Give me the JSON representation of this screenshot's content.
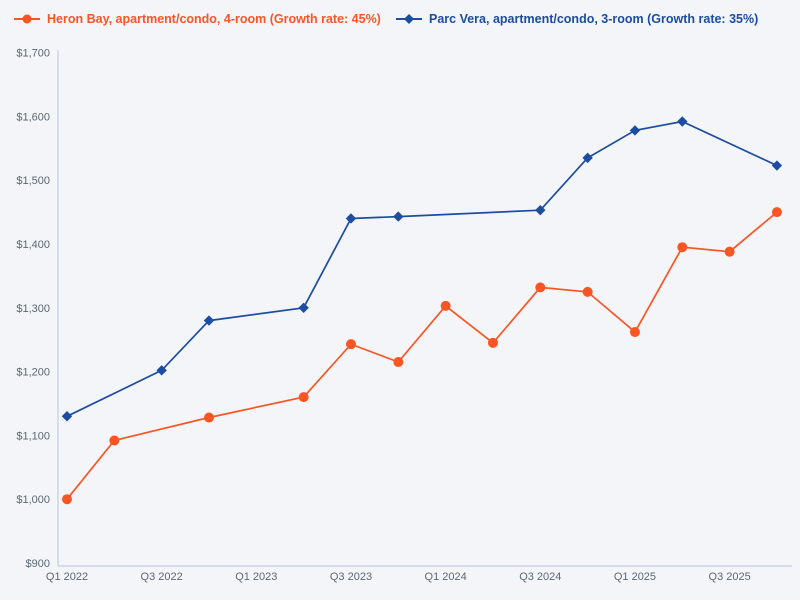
{
  "legend": {
    "items": [
      {
        "label": "Heron Bay, apartment/condo, 4-room (Growth rate: 45%)",
        "marker": "circle",
        "color": "#fb5524"
      },
      {
        "label": "Parc Vera, apartment/condo, 3-room (Growth rate: 35%)",
        "marker": "diamond",
        "color": "#1c4da0"
      }
    ]
  },
  "colors": {
    "background": "#f3f5f8",
    "axis_line": "#c6d3e3",
    "tick_text": "#5c6775",
    "series_orange": "#fb5524",
    "series_blue": "#1c4da0"
  },
  "chart_data": {
    "type": "line",
    "title": "",
    "xlabel": "",
    "ylabel": "",
    "grid": false,
    "legend_position": "top",
    "ylim": [
      900,
      1700
    ],
    "y_ticks": [
      900,
      1000,
      1100,
      1200,
      1300,
      1400,
      1500,
      1600,
      1700
    ],
    "y_tick_labels": [
      "$900",
      "$1,000",
      "$1,100",
      "$1,200",
      "$1,300",
      "$1,400",
      "$1,500",
      "$1,600",
      "$1,700"
    ],
    "quarters": [
      "Q1 2022",
      "Q2 2022",
      "Q3 2022",
      "Q4 2022",
      "Q1 2023",
      "Q2 2023",
      "Q3 2023",
      "Q4 2023",
      "Q1 2024",
      "Q2 2024",
      "Q3 2024",
      "Q4 2024",
      "Q1 2025",
      "Q2 2025",
      "Q3 2025",
      "Q4 2025"
    ],
    "x_tick_labels": [
      "Q1 2022",
      "Q3 2022",
      "Q1 2023",
      "Q3 2023",
      "Q1 2024",
      "Q3 2024",
      "Q1 2025",
      "Q3 2025"
    ],
    "series": [
      {
        "name": "Heron Bay, apartment/condo, 4-room (Growth rate: 45%)",
        "color": "#fb5524",
        "marker": "circle",
        "growth_rate": "45%",
        "points": [
          [
            "Q1 2022",
            1000
          ],
          [
            "Q2 2022",
            1092
          ],
          [
            "Q4 2022",
            1128
          ],
          [
            "Q2 2023",
            1160
          ],
          [
            "Q3 2023",
            1243
          ],
          [
            "Q4 2023",
            1215
          ],
          [
            "Q1 2024",
            1303
          ],
          [
            "Q2 2024",
            1245
          ],
          [
            "Q3 2024",
            1332
          ],
          [
            "Q4 2024",
            1325
          ],
          [
            "Q1 2025",
            1262
          ],
          [
            "Q2 2025",
            1395
          ],
          [
            "Q3 2025",
            1388
          ],
          [
            "Q4 2025",
            1450
          ]
        ]
      },
      {
        "name": "Parc Vera, apartment/condo, 3-room (Growth rate: 35%)",
        "color": "#1c4da0",
        "marker": "diamond",
        "growth_rate": "35%",
        "points": [
          [
            "Q1 2022",
            1130
          ],
          [
            "Q3 2022",
            1202
          ],
          [
            "Q4 2022",
            1280
          ],
          [
            "Q2 2023",
            1300
          ],
          [
            "Q3 2023",
            1440
          ],
          [
            "Q4 2023",
            1443
          ],
          [
            "Q3 2024",
            1453
          ],
          [
            "Q4 2024",
            1535
          ],
          [
            "Q1 2025",
            1578
          ],
          [
            "Q2 2025",
            1592
          ],
          [
            "Q4 2025",
            1523
          ]
        ]
      }
    ]
  }
}
